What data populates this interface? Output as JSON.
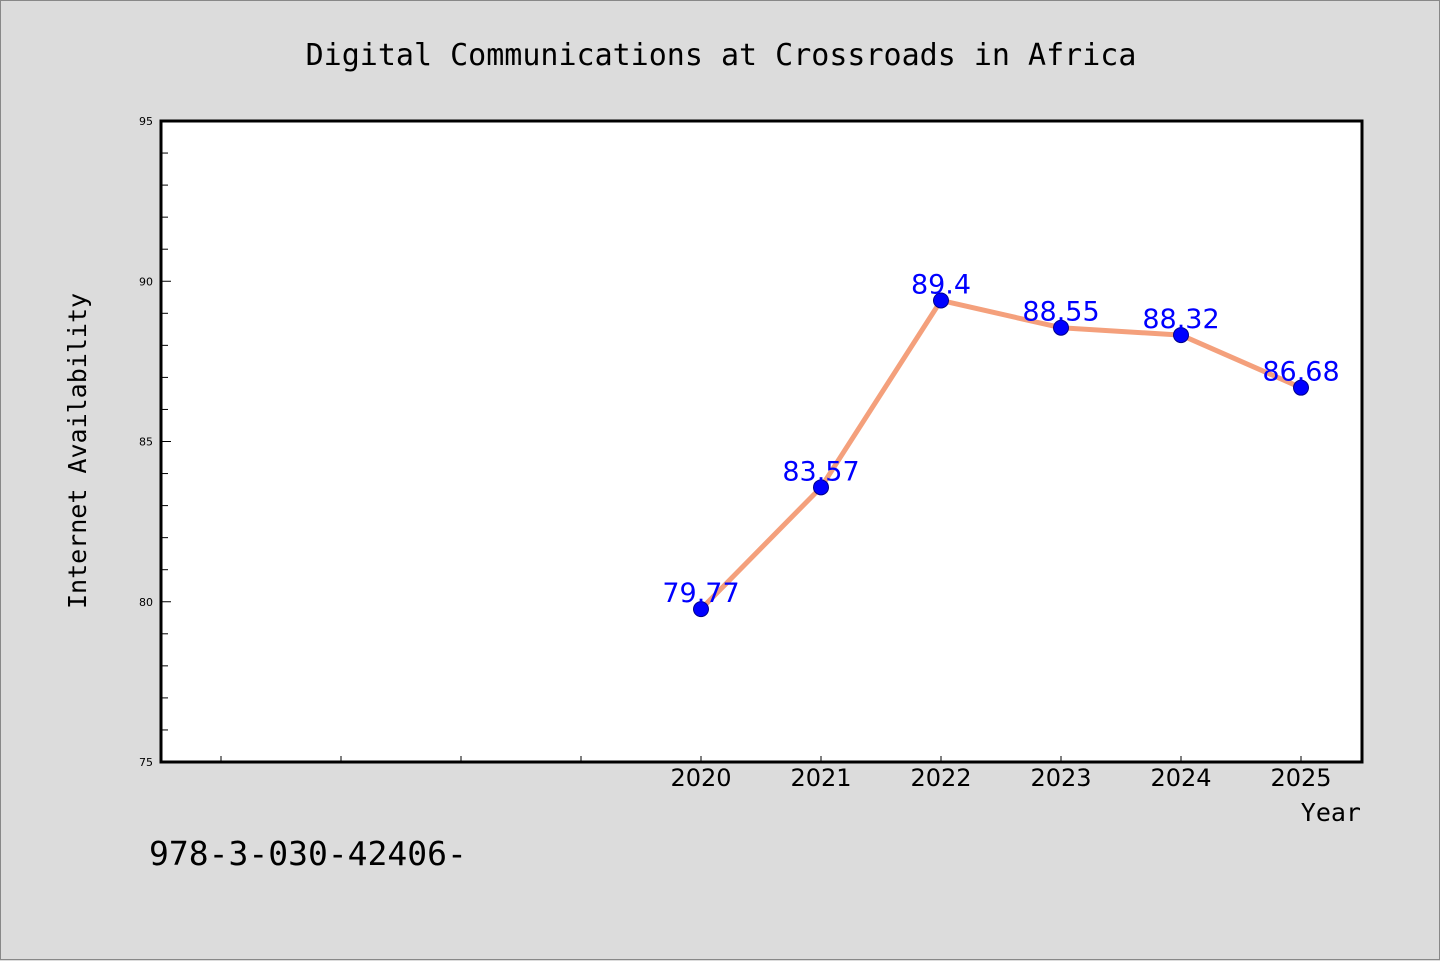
{
  "chart_data": {
    "type": "line",
    "title": "Digital Communications at Crossroads in Africa",
    "xlabel": "Year",
    "ylabel": "Internet Availability",
    "x": [
      "2020",
      "2021",
      "2022",
      "2023",
      "2024",
      "2025"
    ],
    "series": [
      {
        "values": [
          79.77,
          83.57,
          89.4,
          88.55,
          88.32,
          86.68
        ]
      }
    ],
    "data_labels": [
      "79.77",
      "83.57",
      "89.4",
      "88.55",
      "88.32",
      "86.68"
    ],
    "ylim": [
      75,
      95
    ],
    "yticks": [
      "75",
      "80",
      "85",
      "90",
      "95"
    ],
    "grid": false,
    "legend": "none",
    "colors": {
      "line": "#f4a07c",
      "marker": "#0000ff",
      "data_label": "#0000ff",
      "background": "#dcdcdc",
      "plot_background": "#ffffff"
    }
  },
  "footer": {
    "text": "978-3-030-42406-"
  }
}
